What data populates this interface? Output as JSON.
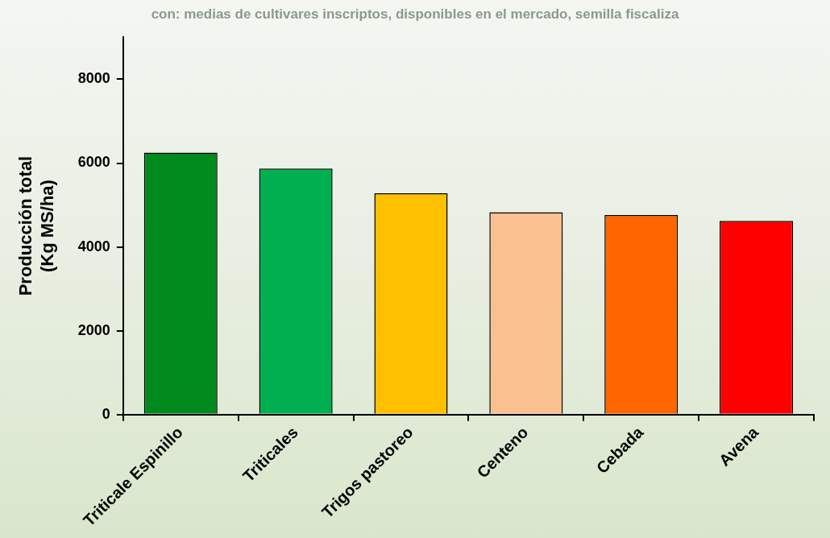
{
  "chart_data": {
    "type": "bar",
    "title": "con: medias de cultivares inscriptos, disponibles en el mercado, semilla fiscaliza",
    "y_label": "Producción total (Kg MS/ha)",
    "categories": [
      "Triticale Espinillo",
      "Triticales",
      "Trigos pastoreo",
      "Centeno",
      "Cebada",
      "Avena"
    ],
    "values": [
      6250,
      5870,
      5280,
      4830,
      4760,
      4620
    ],
    "colors": [
      "#008a1e",
      "#00b050",
      "#ffc000",
      "#fac090",
      "#ff6600",
      "#ff0000"
    ],
    "ylim": [
      0,
      9000
    ],
    "yticks": [
      0,
      2000,
      4000,
      6000,
      8000
    ],
    "grid": false
  }
}
